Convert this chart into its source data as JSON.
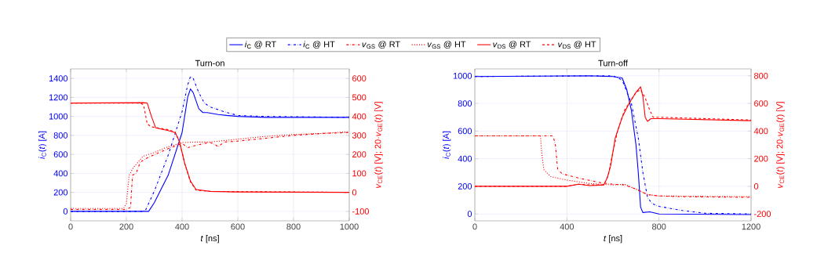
{
  "chart_data": [
    {
      "type": "line",
      "title": "Turn-on",
      "xlabel": "*t* [ns]",
      "ylabel": "*i*$_{C}$(*t*) [A]",
      "y2label": "*v*$_{CE}$(*t*) [V]; 20·*v*$_{GE}$(*t*) [V]",
      "xlim": [
        0,
        1000
      ],
      "xticks": [
        0,
        200,
        400,
        600,
        800,
        1000
      ],
      "ylim": [
        -100,
        1500
      ],
      "yticks": [
        0,
        200,
        400,
        600,
        800,
        1000,
        1200,
        1400
      ],
      "y2lim": [
        -150,
        650
      ],
      "y2ticks": [
        -100,
        0,
        100,
        200,
        300,
        400,
        500,
        600
      ],
      "grid": true,
      "legend": "top",
      "series": [
        {
          "name": "*i*$_{C}$ @ RT",
          "color": "#0000ff",
          "line_style": "solid",
          "x": [
            0,
            270,
            280,
            300,
            350,
            400,
            420,
            430,
            440,
            460,
            475,
            490,
            510,
            530,
            560,
            600,
            700,
            1000
          ],
          "values": [
            0,
            0,
            0,
            90,
            380,
            830,
            1200,
            1290,
            1250,
            1080,
            1040,
            1040,
            1030,
            1020,
            1010,
            1000,
            990,
            990
          ]
        },
        {
          "name": "*i*$_{C}$ @ HT",
          "color": "#0000ff",
          "line_style": "dashdot",
          "x": [
            0,
            260,
            270,
            300,
            350,
            400,
            420,
            430,
            440,
            460,
            480,
            500,
            550,
            600,
            700,
            1000
          ],
          "values": [
            0,
            0,
            20,
            210,
            590,
            1050,
            1330,
            1420,
            1400,
            1250,
            1140,
            1100,
            1050,
            1010,
            1000,
            990
          ]
        },
        {
          "name": "*v*$_{GS}$ @ RT",
          "color": "#ff0000",
          "line_style": "dashdot",
          "axis": "y2",
          "x": [
            0,
            200,
            215,
            222,
            235,
            250,
            280,
            350,
            400,
            420,
            450,
            500,
            520,
            530,
            550,
            600,
            700,
            800,
            900,
            1000
          ],
          "values": [
            -90,
            -90,
            -80,
            90,
            100,
            160,
            185,
            230,
            258,
            235,
            248,
            263,
            250,
            240,
            265,
            270,
            285,
            300,
            310,
            315
          ]
        },
        {
          "name": "*v*$_{GS}$ @ HT",
          "color": "#ff0000",
          "line_style": "dotted",
          "axis": "y2",
          "x": [
            0,
            190,
            200,
            210,
            225,
            260,
            300,
            350,
            400,
            450,
            500,
            600,
            700,
            800,
            900,
            1000
          ],
          "values": [
            -85,
            -85,
            -60,
            90,
            130,
            190,
            210,
            240,
            262,
            265,
            265,
            280,
            295,
            305,
            310,
            320
          ]
        },
        {
          "name": "*v*$_{DS}$ @ RT",
          "color": "#ff0000",
          "line_style": "solid",
          "axis": "y2",
          "x": [
            0,
            260,
            275,
            290,
            305,
            350,
            375,
            390,
            410,
            430,
            450,
            500,
            600,
            1000
          ],
          "values": [
            470,
            472,
            470,
            400,
            340,
            325,
            315,
            270,
            150,
            60,
            15,
            5,
            2,
            0
          ]
        },
        {
          "name": "*v*$_{DS}$ @ HT",
          "color": "#ff0000",
          "line_style": "dashed",
          "axis": "y2",
          "x": [
            0,
            250,
            262,
            275,
            290,
            350,
            375,
            390,
            410,
            430,
            450,
            500,
            1000
          ],
          "values": [
            470,
            470,
            460,
            360,
            345,
            330,
            318,
            270,
            150,
            55,
            12,
            5,
            0
          ]
        }
      ]
    },
    {
      "type": "line",
      "title": "Turn-off",
      "xlabel": "*t* [ns]",
      "ylabel": "*i*$_{C}$(*t*) [A]",
      "y2label": "*v*$_{CE}$(*t*) [V]; 20·*v*$_{GE}$(*t*) [V]",
      "xlim": [
        0,
        1200
      ],
      "xticks": [
        0,
        400,
        800,
        1200
      ],
      "ylim": [
        -50,
        1050
      ],
      "yticks": [
        0,
        200,
        400,
        600,
        800,
        1000
      ],
      "y2lim": [
        -250,
        850
      ],
      "y2ticks": [
        -200,
        0,
        200,
        400,
        600,
        800
      ],
      "grid": true,
      "series": [
        {
          "color": "#0000ff",
          "line_style": "solid",
          "x": [
            0,
            500,
            600,
            640,
            660,
            680,
            700,
            710,
            720,
            730,
            760,
            800,
            1200
          ],
          "values": [
            995,
            1000,
            995,
            985,
            900,
            750,
            500,
            300,
            50,
            10,
            15,
            0,
            -5
          ]
        },
        {
          "color": "#0000ff",
          "line_style": "dashdot",
          "x": [
            0,
            600,
            640,
            680,
            710,
            730,
            750,
            770,
            800,
            900,
            1000,
            1200
          ],
          "values": [
            995,
            1000,
            970,
            800,
            550,
            300,
            120,
            75,
            55,
            25,
            5,
            0
          ]
        },
        {
          "color": "#ff0000",
          "line_style": "dashdot",
          "axis": "y2",
          "x": [
            0,
            340,
            350,
            360,
            380,
            450,
            550,
            600,
            650,
            700,
            750,
            800,
            900,
            1200
          ],
          "values": [
            365,
            365,
            300,
            120,
            90,
            60,
            25,
            15,
            10,
            -20,
            -60,
            -70,
            -75,
            -80
          ]
        },
        {
          "color": "#ff0000",
          "line_style": "dotted",
          "axis": "y2",
          "x": [
            0,
            285,
            290,
            300,
            330,
            400,
            500,
            600,
            650,
            700,
            750,
            800,
            1200
          ],
          "values": [
            365,
            365,
            250,
            120,
            70,
            45,
            20,
            10,
            15,
            -20,
            -60,
            -70,
            -75
          ]
        },
        {
          "color": "#ff0000",
          "line_style": "solid",
          "axis": "y2",
          "x": [
            0,
            400,
            450,
            500,
            560,
            575,
            590,
            610,
            640,
            670,
            700,
            720,
            730,
            740,
            750,
            765,
            800,
            1200
          ],
          "values": [
            0,
            0,
            15,
            5,
            10,
            60,
            150,
            350,
            500,
            600,
            680,
            720,
            650,
            500,
            470,
            490,
            490,
            475
          ]
        },
        {
          "color": "#ff0000",
          "line_style": "dashed",
          "axis": "y2",
          "x": [
            0,
            400,
            450,
            500,
            560,
            580,
            600,
            620,
            650,
            700,
            720,
            740,
            760,
            775,
            800,
            1200
          ],
          "values": [
            0,
            0,
            15,
            10,
            10,
            80,
            250,
            400,
            550,
            680,
            700,
            640,
            550,
            500,
            500,
            480
          ]
        }
      ]
    }
  ]
}
